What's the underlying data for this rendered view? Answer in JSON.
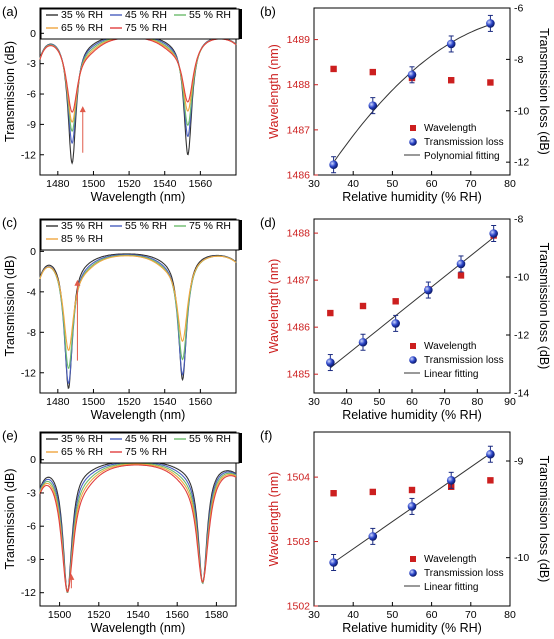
{
  "chart_data": [
    {
      "panel": "(a)",
      "type": "line",
      "xlabel": "Wavelength (nm)",
      "ylabel": "Transmission (dB)",
      "xlim": [
        1470,
        1580
      ],
      "ylim": [
        -14,
        2.5
      ],
      "xticks": [
        1480,
        1500,
        1520,
        1540,
        1560
      ],
      "yticks": [
        0,
        -3,
        -6,
        -9,
        -12
      ],
      "dips": [
        1488,
        1553
      ],
      "arrow": {
        "x": 1494,
        "from": -11.8,
        "to": -7.2,
        "color": "#e05a4a"
      },
      "series": [
        {
          "name": "35 % RH",
          "color": "#333333",
          "depths": [
            -12.3,
            -11.5
          ]
        },
        {
          "name": "45 % RH",
          "color": "#4a5fbf",
          "depths": [
            -10.2,
            -9.6
          ]
        },
        {
          "name": "55 % RH",
          "color": "#6dbb6d",
          "depths": [
            -8.9,
            -8.4
          ]
        },
        {
          "name": "65 % RH",
          "color": "#f0a640",
          "depths": [
            -7.9,
            -6.9
          ]
        },
        {
          "name": "75 % RH",
          "color": "#e04040",
          "depths": [
            -6.8,
            -5.9
          ]
        }
      ]
    },
    {
      "panel": "(b)",
      "type": "scatter",
      "xlabel": "Relative humidity (% RH)",
      "ylabel": "Wavelength (nm)",
      "y2label": "Transmission loss (dB)",
      "xlim": [
        30,
        80
      ],
      "ylim": [
        1486,
        1489.7
      ],
      "y2lim": [
        -12.5,
        -6
      ],
      "xticks": [
        30,
        40,
        50,
        60,
        70,
        80
      ],
      "yticks": [
        1486,
        1487,
        1488,
        1489
      ],
      "y2ticks": [
        -12,
        -10,
        -8,
        -6
      ],
      "x": [
        35,
        45,
        55,
        65,
        75
      ],
      "wavelength": [
        1488.35,
        1488.28,
        1488.15,
        1488.1,
        1488.05
      ],
      "loss": [
        -12.1,
        -9.8,
        -8.6,
        -7.4,
        -6.6
      ],
      "fit": "polynomial",
      "legend": [
        "Wavelength",
        "Transmission loss",
        "Polynomial fitting"
      ]
    },
    {
      "panel": "(c)",
      "type": "line",
      "xlabel": "Wavelength (nm)",
      "ylabel": "Transmission (dB)",
      "xlim": [
        1470,
        1580
      ],
      "ylim": [
        -14,
        3.2
      ],
      "xticks": [
        1480,
        1500,
        1520,
        1540,
        1560
      ],
      "yticks": [
        0,
        -4,
        -8,
        -12
      ],
      "dips": [
        1486,
        1550
      ],
      "arrow": {
        "x": 1491,
        "from": -10.8,
        "to": -2.8,
        "color": "#e05a4a"
      },
      "series": [
        {
          "name": "35 % RH",
          "color": "#333333",
          "depths": [
            -13.0,
            -12.2
          ]
        },
        {
          "name": "55 % RH",
          "color": "#4a5fbf",
          "depths": [
            -12.4,
            -11.6
          ]
        },
        {
          "name": "75 % RH",
          "color": "#6dbb6d",
          "depths": [
            -10.8,
            -10.0
          ]
        },
        {
          "name": "85 % RH",
          "color": "#f0a640",
          "depths": [
            -8.9,
            -8.1
          ]
        }
      ]
    },
    {
      "panel": "(d)",
      "type": "scatter",
      "xlabel": "Relative humidity (% RH)",
      "ylabel": "Wavelength (nm)",
      "y2label": "Transmission loss (dB)",
      "xlim": [
        30,
        90
      ],
      "ylim": [
        1484.6,
        1488.3
      ],
      "y2lim": [
        -14,
        -8
      ],
      "xticks": [
        30,
        40,
        50,
        60,
        70,
        80,
        90
      ],
      "yticks": [
        1485,
        1486,
        1487,
        1488
      ],
      "y2ticks": [
        -14,
        -12,
        -10,
        -8
      ],
      "x": [
        35,
        45,
        55,
        65,
        75,
        85
      ],
      "wavelength": [
        1486.3,
        1486.45,
        1486.55,
        1486.8,
        1487.1,
        1487.95
      ],
      "loss": [
        -12.95,
        -12.25,
        -11.6,
        -10.45,
        -9.55,
        -8.5
      ],
      "fit": "linear",
      "legend": [
        "Wavelength",
        "Transmission loss",
        "Linear fitting"
      ]
    },
    {
      "panel": "(e)",
      "type": "line",
      "xlabel": "Wavelength (nm)",
      "ylabel": "Transmission (dB)",
      "xlim": [
        1490,
        1590
      ],
      "ylim": [
        -13.2,
        2.5
      ],
      "xticks": [
        1500,
        1520,
        1540,
        1560,
        1580
      ],
      "yticks": [
        0,
        -3,
        -6,
        -9,
        -12
      ],
      "dips": [
        1504,
        1573
      ],
      "arrow": {
        "x": 1506,
        "from": -11.6,
        "to": -10.3,
        "color": "#e05a4a"
      },
      "series": [
        {
          "name": "35 % RH",
          "color": "#333333",
          "depths": [
            -11.4,
            -10.6
          ]
        },
        {
          "name": "45 % RH",
          "color": "#4a5fbf",
          "depths": [
            -11.3,
            -10.5
          ]
        },
        {
          "name": "55 % RH",
          "color": "#6dbb6d",
          "depths": [
            -11.2,
            -10.4
          ]
        },
        {
          "name": "65 % RH",
          "color": "#f0a640",
          "depths": [
            -11.0,
            -10.2
          ]
        },
        {
          "name": "75 % RH",
          "color": "#e04040",
          "depths": [
            -10.9,
            -10.1
          ]
        }
      ]
    },
    {
      "panel": "(f)",
      "type": "scatter",
      "xlabel": "Relative humidity (% RH)",
      "ylabel": "Wavelength (nm)",
      "y2label": "Transmission loss (dB)",
      "xlim": [
        30,
        80
      ],
      "ylim": [
        1502,
        1504.7
      ],
      "y2lim": [
        -10.5,
        -8.7
      ],
      "xticks": [
        30,
        40,
        50,
        60,
        70,
        80
      ],
      "yticks": [
        1502,
        1503,
        1504
      ],
      "y2ticks": [
        -10,
        -9
      ],
      "x": [
        35,
        45,
        55,
        65,
        75
      ],
      "wavelength": [
        1503.75,
        1503.77,
        1503.8,
        1503.85,
        1503.95
      ],
      "loss": [
        -10.05,
        -9.78,
        -9.47,
        -9.2,
        -8.93
      ],
      "fit": "linear",
      "legend": [
        "Wavelength",
        "Transmission loss",
        "Linear fitting"
      ]
    }
  ]
}
